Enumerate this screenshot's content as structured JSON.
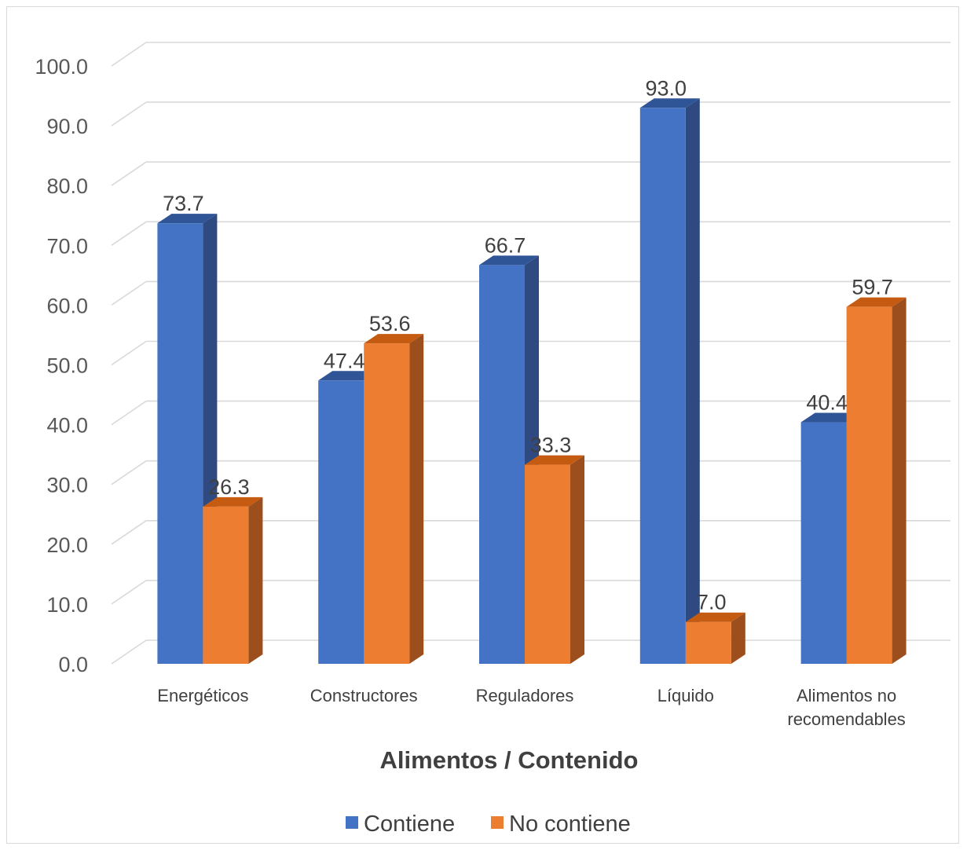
{
  "chart_data": {
    "type": "bar",
    "categories": [
      [
        "Energéticos"
      ],
      [
        "Constructores"
      ],
      [
        "Reguladores"
      ],
      [
        "Líquido"
      ],
      [
        "Alimentos no",
        "recomendables"
      ]
    ],
    "series": [
      {
        "name": "Contiene",
        "values": [
          73.7,
          47.4,
          66.7,
          93.0,
          40.4
        ],
        "color": "#4472c4",
        "side_color": "#2e4a80",
        "top_color": "#2f5597"
      },
      {
        "name": "No contiene",
        "values": [
          26.3,
          53.6,
          33.3,
          7.0,
          59.7
        ],
        "color": "#ed7d31",
        "side_color": "#9c4f1c",
        "top_color": "#c55a11"
      }
    ],
    "value_labels": [
      [
        "73.7",
        "47.4",
        "66.7",
        "93.0",
        "40.4"
      ],
      [
        "26.3",
        "53.6",
        "33.3",
        "7.0",
        "59.7"
      ]
    ],
    "y_ticks": [
      "0.0",
      "10.0",
      "20.0",
      "30.0",
      "40.0",
      "50.0",
      "60.0",
      "70.0",
      "80.0",
      "90.0",
      "100.0"
    ],
    "ylim": [
      0,
      100
    ],
    "xlabel": "Alimentos / Contenido",
    "ylabel": "",
    "grid": true,
    "legend_position": "bottom",
    "view": "3d-clustered-column"
  }
}
